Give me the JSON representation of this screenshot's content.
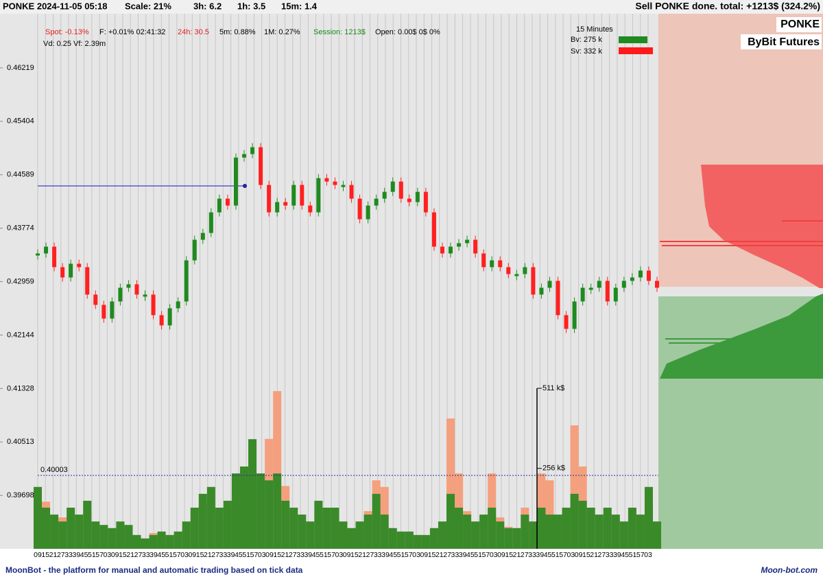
{
  "top_bar": {
    "symbol_time": "PONKE 2024-11-05 05:18",
    "scale": "Scale: 21%",
    "h3": "3h:  6.2",
    "h1": "1h:  3.5",
    "m15": "15m:  1.4",
    "status": "Sell PONKE done. total: +1213$ (324.2%)"
  },
  "info": {
    "spot": "Spot: -0.13%",
    "funding": "F: +0.01% 02:41:32",
    "h24": "24h: 30.5",
    "m5": "5m: 0.88%",
    "m1": "1M: 0.27%",
    "session": "Session: 1213$",
    "open": "Open: 0.00$  0$  0%",
    "vd": "Vd: 0.25 Vf: 2.39m"
  },
  "legend": {
    "title": "15 Minutes",
    "bv": "Bv: 275 k",
    "sv": "Sv: 332 k"
  },
  "badges": {
    "coin": "PONKE",
    "exchange": "ByBit Futures"
  },
  "time_labels": [
    "09",
    "15",
    "21",
    "27",
    "33",
    "39",
    "45",
    "51",
    "57",
    "03",
    "09",
    "15",
    "21",
    "27",
    "33",
    "39",
    "45",
    "51",
    "57",
    "03",
    "09",
    "15",
    "21",
    "27",
    "33",
    "39",
    "45",
    "51",
    "57",
    "03",
    "09",
    "15",
    "21",
    "27",
    "33",
    "39",
    "45",
    "51",
    "57",
    "03",
    "09",
    "15",
    "21",
    "27",
    "33",
    "39",
    "45",
    "51",
    "57",
    "03",
    "09",
    "15",
    "21",
    "27",
    "33",
    "39",
    "45",
    "51",
    "57",
    "03",
    "09",
    "15",
    "21",
    "27",
    "33",
    "39",
    "45",
    "51",
    "57",
    "03",
    "09",
    "15",
    "21",
    "27",
    "33",
    "39",
    "45",
    "51",
    "57",
    "03"
  ],
  "footer": {
    "left": "MoonBot - the platform for manual and automatic trading based on tick data",
    "right": "Moon-bot.com"
  },
  "chart_data": [
    {
      "type": "line",
      "up_color": "#1f8a1f",
      "down_color": "#ff2020",
      "series": [
        {
          "values": [
            0.43388,
            0.43492,
            0.43179,
            0.43022,
            0.43231,
            0.43179,
            0.42761,
            0.42604,
            0.42395,
            0.42656,
            0.42865,
            0.42918,
            0.42761,
            0.42761,
            0.42447,
            0.42291,
            0.42552,
            0.42656,
            0.43283,
            0.43597,
            0.43701,
            0.44015,
            0.44224,
            0.44119,
            0.44851,
            0.44904,
            0.45009,
            0.44433,
            0.44015,
            0.44172,
            0.44119,
            0.44433,
            0.44119,
            0.44015,
            0.44537,
            0.44485,
            0.44433,
            0.44433,
            0.44224,
            0.4391,
            0.44119,
            0.44224,
            0.44328,
            0.44485,
            0.44224,
            0.44172,
            0.44328,
            0.44015,
            0.43492,
            0.43388,
            0.43492,
            0.43545,
            0.43597,
            0.43388,
            0.43179,
            0.43283,
            0.43179,
            0.43074,
            0.43074,
            0.43179,
            0.42761,
            0.42865,
            0.4297,
            0.42447,
            0.42238,
            0.42656,
            0.42865,
            0.42865,
            0.4297,
            0.42656,
            0.42865,
            0.4297,
            0.43022,
            0.43127,
            0.4297,
            0.42865
          ]
        }
      ],
      "ylim": [
        0.38883,
        0.47045
      ],
      "yticks": [
        0.46219,
        0.45404,
        0.44589,
        0.43774,
        0.42959,
        0.42144,
        0.41328,
        0.40513,
        0.39698
      ],
      "levels": [
        0.40003
      ],
      "level_color": "#2a2aa0"
    },
    {
      "type": "bar",
      "series": [
        {
          "color": "#f4a07e",
          "values": [
            150,
            150,
            90,
            100,
            80,
            90,
            120,
            60,
            70,
            50,
            70,
            60,
            40,
            30,
            50,
            40,
            40,
            50,
            70,
            100,
            140,
            150,
            110,
            120,
            200,
            230,
            300,
            200,
            350,
            502,
            200,
            110,
            90,
            70,
            120,
            110,
            100,
            70,
            60,
            80,
            120,
            218,
            197,
            60,
            50,
            50,
            40,
            40,
            60,
            80,
            415,
            240,
            120,
            80,
            100,
            240,
            100,
            70,
            60,
            131,
            70,
            240,
            218,
            90,
            110,
            393,
            262,
            110,
            90,
            110,
            90,
            70,
            110,
            90,
            150,
            80
          ]
        },
        {
          "color": "#3a8a2a",
          "values": [
            197,
            131,
            109,
            87,
            131,
            109,
            153,
            87,
            76,
            66,
            87,
            76,
            44,
            33,
            44,
            55,
            44,
            55,
            87,
            131,
            175,
            197,
            131,
            153,
            240,
            262,
            349,
            240,
            218,
            240,
            153,
            131,
            109,
            87,
            153,
            131,
            131,
            87,
            66,
            87,
            109,
            175,
            109,
            66,
            55,
            55,
            44,
            44,
            66,
            87,
            175,
            131,
            109,
            87,
            109,
            131,
            87,
            66,
            66,
            109,
            87,
            131,
            109,
            109,
            131,
            175,
            153,
            131,
            109,
            131,
            109,
            87,
            131,
            109,
            197,
            87
          ]
        }
      ],
      "ylim": [
        0,
        511
      ],
      "yticks": [
        {
          "value": 511,
          "label": "511 k$"
        },
        {
          "value": 256,
          "label": "256 k$"
        }
      ]
    }
  ]
}
